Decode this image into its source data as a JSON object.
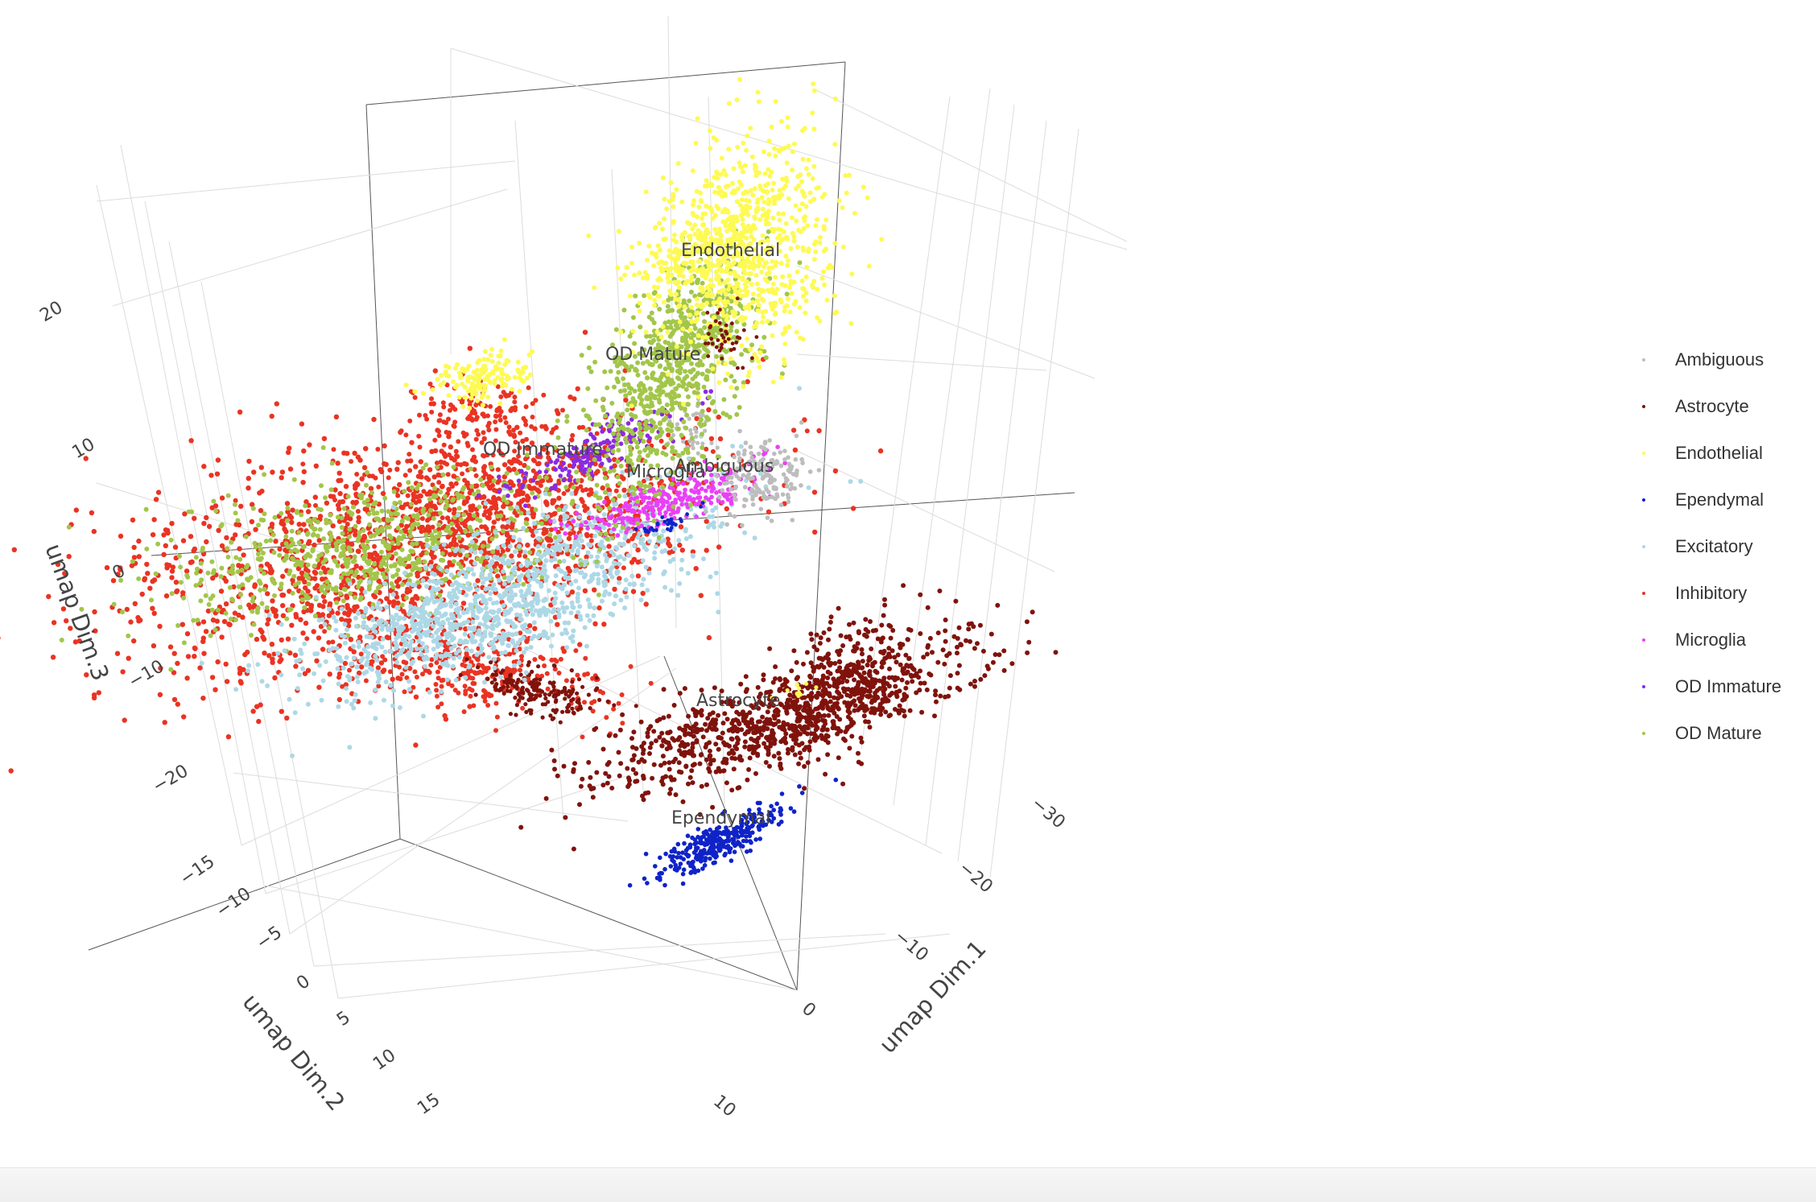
{
  "chart_data": {
    "type": "scatter",
    "projection": "3d",
    "axes": {
      "x": {
        "label": "umap Dim.1",
        "ticks": [
          10,
          0,
          -10,
          -20,
          -30
        ]
      },
      "y": {
        "label": "umap Dim.2",
        "ticks": [
          -15,
          -10,
          -5,
          0,
          5,
          10,
          15
        ]
      },
      "z": {
        "label": "umap Dim.3",
        "ticks": [
          20,
          10,
          0,
          -10,
          -20
        ]
      }
    },
    "grid": true,
    "legend_position": "right",
    "series": [
      {
        "name": "Ambiguous",
        "color": "#bdbdbd"
      },
      {
        "name": "Astrocyte",
        "color": "#7f130c"
      },
      {
        "name": "Endothelial",
        "color": "#fefa54"
      },
      {
        "name": "Ependymal",
        "color": "#0f23c8"
      },
      {
        "name": "Excitatory",
        "color": "#add8e6"
      },
      {
        "name": "Inhibitory",
        "color": "#ea3323"
      },
      {
        "name": "Microglia",
        "color": "#ea3ff7"
      },
      {
        "name": "OD Immature",
        "color": "#8a2be2"
      },
      {
        "name": "OD Mature",
        "color": "#a2c64a"
      }
    ],
    "cluster_labels": [
      "Endothelial",
      "OD Mature",
      "OD Immature",
      "Microglia",
      "Ambiguous",
      "Astrocyte",
      "Ependymal"
    ]
  }
}
